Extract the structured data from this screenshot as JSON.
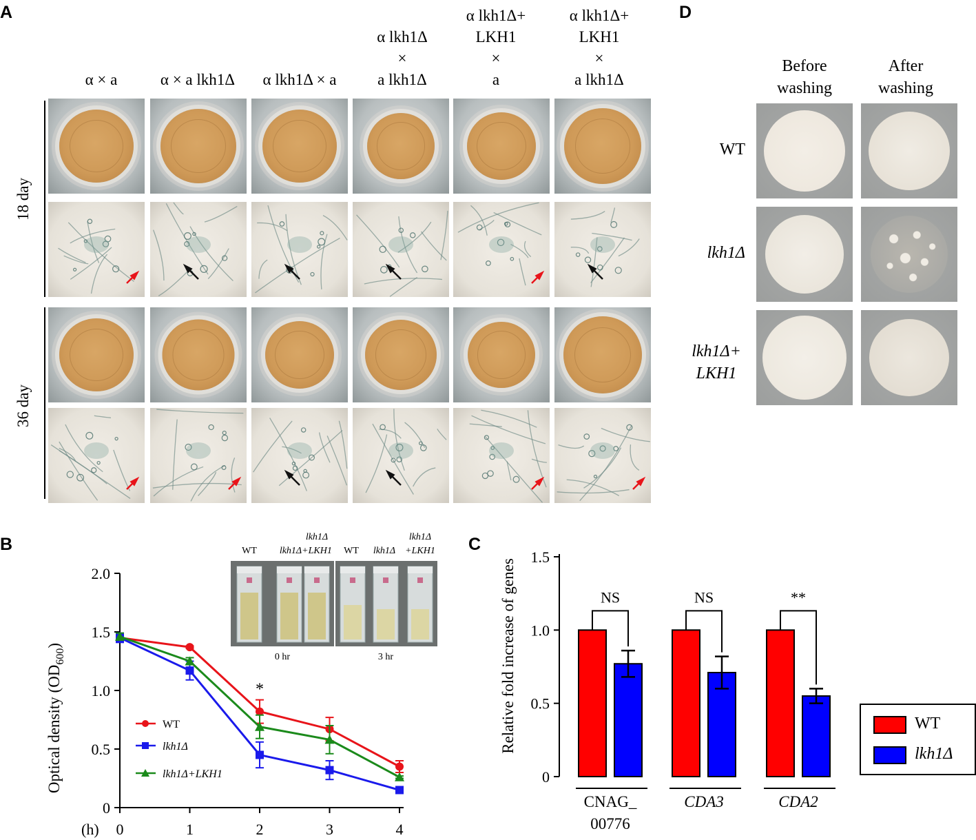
{
  "panels": {
    "A": "A",
    "B": "B",
    "C": "C",
    "D": "D"
  },
  "panelA": {
    "columns": [
      {
        "lines": [
          "",
          "",
          "",
          "α × a"
        ]
      },
      {
        "lines": [
          "",
          "",
          "",
          "α × a lkh1Δ"
        ]
      },
      {
        "lines": [
          "",
          "",
          "",
          "α lkh1Δ × a"
        ]
      },
      {
        "lines": [
          "",
          "α lkh1Δ",
          "×",
          "a lkh1Δ"
        ]
      },
      {
        "lines": [
          "α lkh1Δ+",
          "LKH1",
          "×",
          "a"
        ]
      },
      {
        "lines": [
          "α lkh1Δ+",
          "LKH1",
          "×",
          "a lkh1Δ"
        ]
      }
    ],
    "rows": [
      "18 day",
      "36 day"
    ],
    "arrows": {
      "row18": [
        "red",
        "black",
        "black",
        "black",
        "red",
        "black"
      ],
      "row36": [
        "red",
        "red",
        "black",
        "black",
        "red",
        "red"
      ]
    },
    "colors": {
      "red_arrow": "#e8141a",
      "black_arrow": "#111111"
    }
  },
  "panelB": {
    "inset": {
      "group1": {
        "labels": [
          "WT",
          "lkh1Δ",
          "lkh1Δ",
          "+LKH1"
        ],
        "time": "0 hr"
      },
      "group2": {
        "labels": [
          "WT",
          "lkh1Δ",
          "lkh1Δ",
          "+LKH1"
        ],
        "time": "3 hr"
      }
    },
    "legend": [
      "WT",
      "lkh1Δ",
      "lkh1Δ+LKH1"
    ],
    "significance": "*",
    "xunit": "(h)"
  },
  "panelC": {
    "groups": [
      "CNAG_",
      "00776",
      "CDA3",
      "CDA2"
    ],
    "significance": [
      "NS",
      "NS",
      "**"
    ],
    "legend": [
      "WT",
      "lkh1Δ"
    ]
  },
  "panelD": {
    "col_headers": [
      [
        "Before",
        "washing"
      ],
      [
        "After",
        "washing"
      ]
    ],
    "row_labels": [
      [
        "WT"
      ],
      [
        "lkh1Δ"
      ],
      [
        "lkh1Δ+",
        "LKH1"
      ]
    ]
  },
  "chart_data": [
    {
      "type": "line",
      "title": "",
      "xlabel": "",
      "ylabel": "Optical density (OD600)",
      "x": [
        0,
        1,
        2,
        3,
        4
      ],
      "xlim": [
        0,
        4
      ],
      "ylim": [
        0,
        2.0
      ],
      "yticks": [
        0,
        0.5,
        1.0,
        1.5,
        2.0
      ],
      "ytick_labels": [
        "0",
        "0.5",
        "1.0",
        "1.5",
        "2.0"
      ],
      "series": [
        {
          "name": "WT",
          "color": "#e8141a",
          "marker": "circle",
          "values": [
            1.45,
            1.37,
            0.82,
            0.67,
            0.35
          ],
          "errors": [
            0.02,
            0.01,
            0.1,
            0.1,
            0.05
          ]
        },
        {
          "name": "lkh1Δ",
          "color": "#1a1aeb",
          "marker": "square",
          "values": [
            1.45,
            1.17,
            0.45,
            0.32,
            0.15
          ],
          "errors": [
            0.04,
            0.08,
            0.11,
            0.08,
            0.02
          ]
        },
        {
          "name": "lkh1Δ+LKH1",
          "color": "#1b8a1b",
          "marker": "triangle",
          "values": [
            1.46,
            1.25,
            0.69,
            0.58,
            0.26
          ],
          "errors": [
            0.03,
            0.03,
            0.1,
            0.12,
            0.01
          ]
        }
      ],
      "annotations": [
        {
          "text": "*",
          "x": 2
        }
      ],
      "grid": false,
      "legend_position": "bottom-left"
    },
    {
      "type": "bar",
      "title": "",
      "xlabel": "",
      "ylabel": "Relative fold increase of genes",
      "categories": [
        "CNAG_00776",
        "CDA3",
        "CDA2"
      ],
      "ylim": [
        0,
        1.5
      ],
      "yticks": [
        0,
        0.5,
        1.0,
        1.5
      ],
      "ytick_labels": [
        "0",
        "0.5",
        "1.0",
        "1.5"
      ],
      "series": [
        {
          "name": "WT",
          "color": "#ff0000",
          "values": [
            1.0,
            1.0,
            1.0
          ],
          "errors": [
            0,
            0,
            0
          ]
        },
        {
          "name": "lkh1Δ",
          "color": "#0000ff",
          "values": [
            0.77,
            0.71,
            0.55
          ],
          "errors": [
            0.09,
            0.11,
            0.05
          ]
        }
      ],
      "annotations": [
        "NS",
        "NS",
        "**"
      ],
      "grid": false,
      "legend_position": "right"
    }
  ]
}
